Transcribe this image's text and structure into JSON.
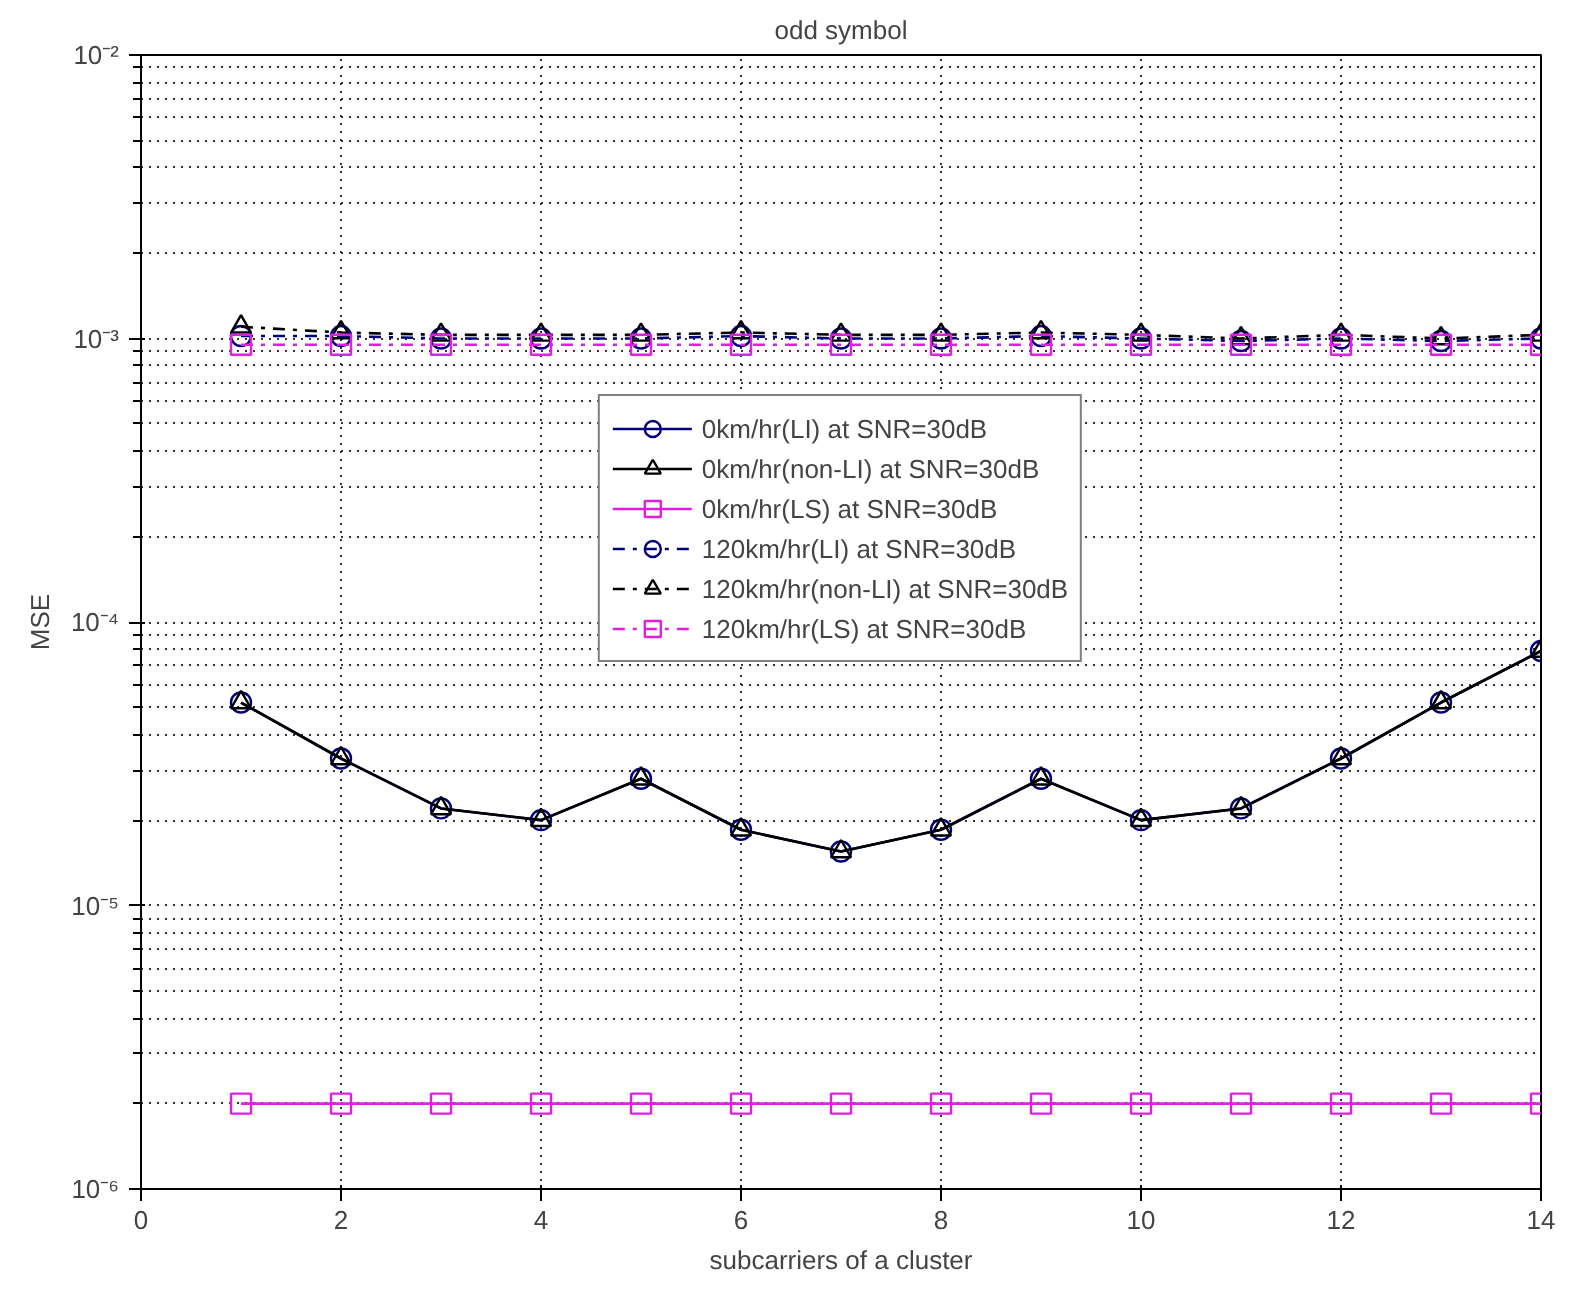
{
  "chart_data": {
    "type": "line",
    "title": "odd symbol",
    "xlabel": "subcarriers of a cluster",
    "ylabel": "MSE",
    "x": [
      1,
      2,
      3,
      4,
      5,
      6,
      7,
      8,
      9,
      10,
      11,
      12,
      13,
      14
    ],
    "series": [
      {
        "name": "0km/hr(LI) at SNR=30dB",
        "color": "#00007f",
        "marker": "circle",
        "line_style": "solid",
        "values": [
          5.2e-05,
          3.3e-05,
          2.2e-05,
          2e-05,
          2.8e-05,
          1.85e-05,
          1.55e-05,
          1.85e-05,
          2.8e-05,
          2e-05,
          2.2e-05,
          3.3e-05,
          5.2e-05,
          7.9e-05
        ]
      },
      {
        "name": "0km/hr(non-LI) at SNR=30dB",
        "color": "#000000",
        "marker": "triangle",
        "line_style": "solid",
        "values": [
          5.2e-05,
          3.3e-05,
          2.2e-05,
          2e-05,
          2.8e-05,
          1.85e-05,
          1.55e-05,
          1.85e-05,
          2.8e-05,
          2e-05,
          2.2e-05,
          3.3e-05,
          5.2e-05,
          7.9e-05
        ]
      },
      {
        "name": "0km/hr(LS) at SNR=30dB",
        "color": "#e020e0",
        "marker": "square",
        "line_style": "solid",
        "values": [
          2e-06,
          2e-06,
          2e-06,
          2e-06,
          2e-06,
          2e-06,
          2e-06,
          2e-06,
          2e-06,
          2e-06,
          2e-06,
          2e-06,
          2e-06,
          2e-06
        ]
      },
      {
        "name": "120km/hr(LI) at SNR=30dB",
        "color": "#00007f",
        "marker": "circle",
        "line_style": "dashdot",
        "values": [
          0.00102,
          0.00102,
          0.001,
          0.001,
          0.001,
          0.00102,
          0.001,
          0.001,
          0.00102,
          0.001,
          0.00098,
          0.001,
          0.00098,
          0.001
        ]
      },
      {
        "name": "120km/hr(non-LI) at SNR=30dB",
        "color": "#000000",
        "marker": "triangle",
        "line_style": "dashdot",
        "values": [
          0.0011,
          0.00105,
          0.00103,
          0.00103,
          0.00103,
          0.00105,
          0.00103,
          0.00103,
          0.00105,
          0.00103,
          0.001,
          0.00103,
          0.001,
          0.00103
        ]
      },
      {
        "name": "120km/hr(LS) at SNR=30dB",
        "color": "#e020e0",
        "marker": "square",
        "line_style": "dashdot",
        "values": [
          0.00095,
          0.00095,
          0.00095,
          0.00095,
          0.00095,
          0.00095,
          0.00095,
          0.00095,
          0.00095,
          0.00095,
          0.00095,
          0.00095,
          0.00095,
          0.00095
        ]
      }
    ],
    "xlim": [
      0,
      14
    ],
    "xticks": [
      0,
      2,
      4,
      6,
      8,
      10,
      12,
      14
    ],
    "ylim": [
      1e-06,
      0.01
    ],
    "yticks": [
      {
        "value": 1e-06,
        "label": "10⁻⁶"
      },
      {
        "value": 1e-05,
        "label": "10⁻⁵"
      },
      {
        "value": 0.0001,
        "label": "10⁻⁴"
      },
      {
        "value": 0.001,
        "label": "10⁻³"
      },
      {
        "value": 0.01,
        "label": "10⁻²"
      }
    ],
    "log": "y",
    "grid": true,
    "legend": "top"
  }
}
